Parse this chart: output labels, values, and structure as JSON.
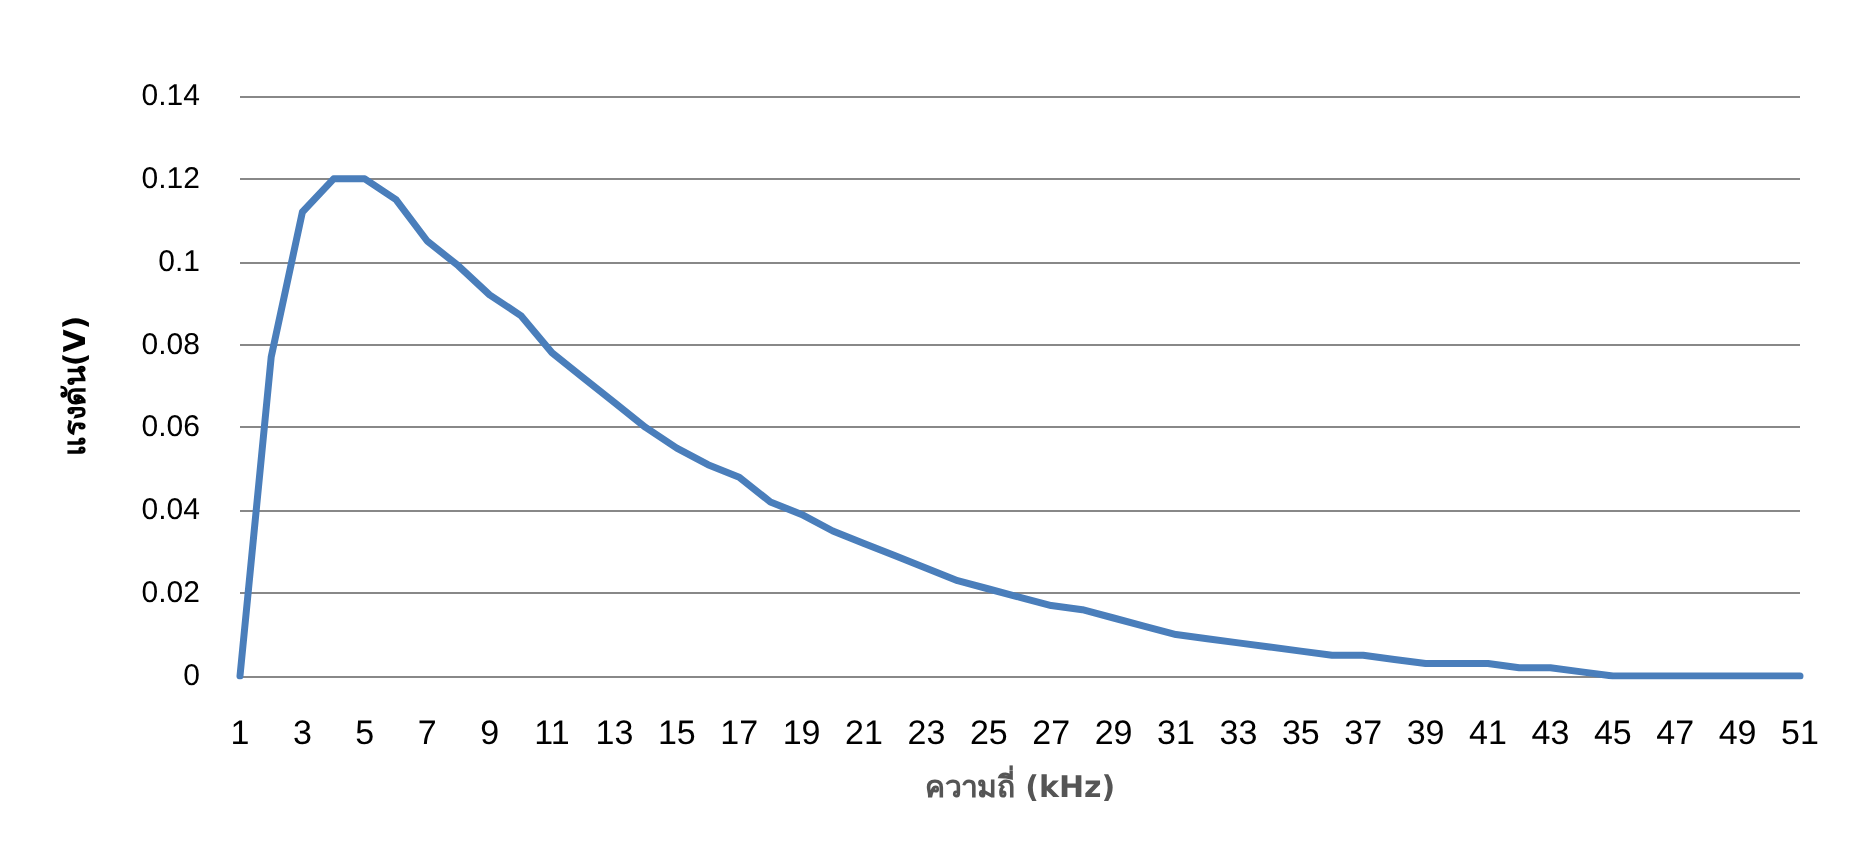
{
  "chart_data": {
    "type": "line",
    "xlabel": "ความถี่ (kHz)",
    "ylabel": "แรงดัน(V)",
    "x": [
      1,
      2,
      3,
      4,
      5,
      6,
      7,
      8,
      9,
      10,
      11,
      12,
      13,
      14,
      15,
      16,
      17,
      18,
      19,
      20,
      21,
      22,
      23,
      24,
      25,
      26,
      27,
      28,
      29,
      30,
      31,
      32,
      33,
      34,
      35,
      36,
      37,
      38,
      39,
      40,
      41,
      42,
      43,
      44,
      45,
      46,
      47,
      48,
      49,
      50,
      51
    ],
    "series": [
      {
        "color": "#4a7ebb",
        "values": [
          0,
          0.077,
          0.112,
          0.12,
          0.12,
          0.115,
          0.105,
          0.099,
          0.092,
          0.087,
          0.078,
          0.072,
          0.066,
          0.06,
          0.055,
          0.051,
          0.048,
          0.042,
          0.039,
          0.035,
          0.032,
          0.029,
          0.026,
          0.023,
          0.021,
          0.019,
          0.017,
          0.016,
          0.014,
          0.012,
          0.01,
          0.009,
          0.008,
          0.007,
          0.006,
          0.005,
          0.005,
          0.004,
          0.003,
          0.003,
          0.003,
          0.002,
          0.002,
          0.001,
          0,
          0,
          0,
          0,
          0,
          0,
          0
        ]
      }
    ],
    "xlim": [
      1,
      51
    ],
    "xticks": [
      1,
      3,
      5,
      7,
      9,
      11,
      13,
      15,
      17,
      19,
      21,
      23,
      25,
      27,
      29,
      31,
      33,
      35,
      37,
      39,
      41,
      43,
      45,
      47,
      49,
      51
    ],
    "ylim": [
      0,
      0.14
    ],
    "yticks": [
      0,
      0.02,
      0.04,
      0.06,
      0.08,
      0.1,
      0.12,
      0.14
    ],
    "grid": "y",
    "marker": "none",
    "line_style": "solid"
  }
}
